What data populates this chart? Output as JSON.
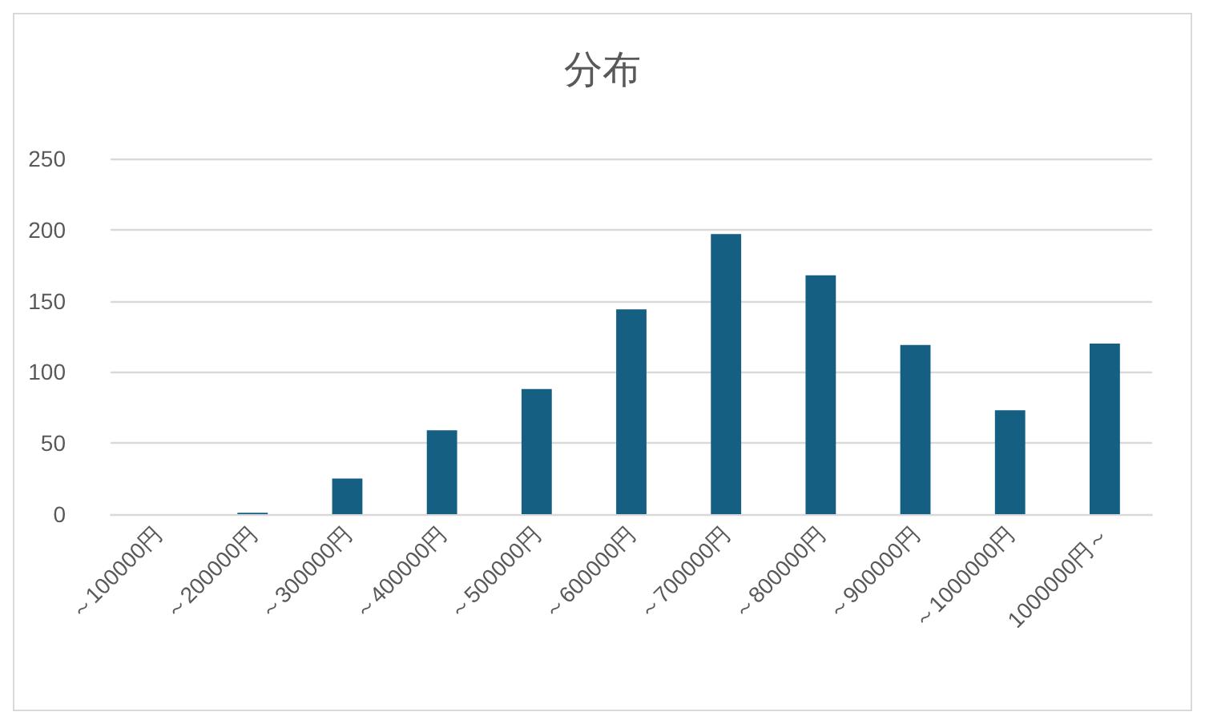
{
  "chart_data": {
    "type": "bar",
    "title": "分布",
    "categories": [
      "～100000円",
      "～200000円",
      "～300000円",
      "～400000円",
      "～500000円",
      "～600000円",
      "～700000円",
      "～800000円",
      "～900000円",
      "～1000000円",
      "1000000円～"
    ],
    "values": [
      0,
      1,
      25,
      59,
      88,
      144,
      197,
      168,
      119,
      73,
      120
    ],
    "color": "#155f83",
    "ylim": [
      0,
      250
    ],
    "yticks": [
      0,
      50,
      100,
      150,
      200,
      250
    ],
    "grid": "y"
  }
}
